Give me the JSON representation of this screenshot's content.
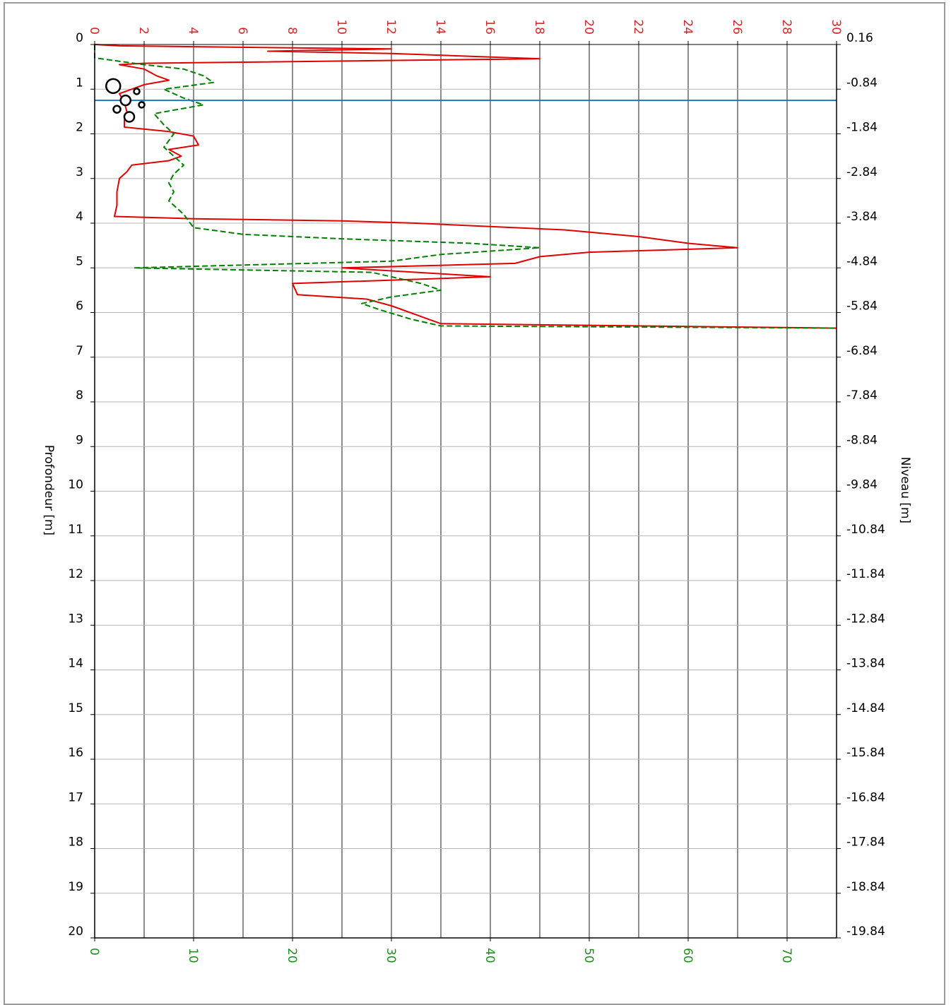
{
  "chart_data": {
    "type": "line",
    "title": "",
    "ylabel_left": "Profondeur [m]",
    "ylabel_right": "Niveau [m]",
    "depth_range": [
      0,
      20
    ],
    "depth_ticks": [
      0,
      1,
      2,
      3,
      4,
      5,
      6,
      7,
      8,
      9,
      10,
      11,
      12,
      13,
      14,
      15,
      16,
      17,
      18,
      19,
      20
    ],
    "level_ticks": [
      "0.16",
      "-0.84",
      "-1.84",
      "-2.84",
      "-3.84",
      "-4.84",
      "-5.84",
      "-6.84",
      "-7.84",
      "-8.84",
      "-9.84",
      "-10.84",
      "-11.84",
      "-12.84",
      "-13.84",
      "-14.84",
      "-15.84",
      "-16.84",
      "-17.84",
      "-18.84",
      "-19.84"
    ],
    "top_axis": {
      "range": [
        0,
        30
      ],
      "ticks": [
        0,
        2,
        4,
        6,
        8,
        10,
        12,
        14,
        16,
        18,
        20,
        22,
        24,
        26,
        28,
        30
      ],
      "color": "#d62728"
    },
    "bottom_axis": {
      "range": [
        0,
        75
      ],
      "ticks": [
        0,
        10,
        20,
        30,
        40,
        50,
        60,
        70
      ],
      "color": "#1f8f1f"
    },
    "grid": true,
    "water_level_depth": 1.25,
    "water_level_color": "#1f77b4",
    "series": [
      {
        "axis": "top",
        "color": "#e00000",
        "style": "solid",
        "points": [
          [
            0,
            0
          ],
          [
            1,
            0.03
          ],
          [
            12,
            0.1
          ],
          [
            7,
            0.15
          ],
          [
            12,
            0.2
          ],
          [
            16,
            0.28
          ],
          [
            18,
            0.32
          ],
          [
            2,
            0.42
          ],
          [
            1,
            0.45
          ],
          [
            2,
            0.55
          ],
          [
            2.5,
            0.7
          ],
          [
            3,
            0.8
          ],
          [
            2,
            0.9
          ],
          [
            1,
            1.1
          ],
          [
            1.2,
            1.3
          ],
          [
            1.3,
            1.5
          ],
          [
            1.2,
            1.7
          ],
          [
            1.2,
            1.85
          ],
          [
            3,
            1.95
          ],
          [
            4,
            2.05
          ],
          [
            4.2,
            2.25
          ],
          [
            3,
            2.35
          ],
          [
            3.5,
            2.5
          ],
          [
            3,
            2.6
          ],
          [
            1.5,
            2.7
          ],
          [
            1.3,
            2.85
          ],
          [
            1,
            3.0
          ],
          [
            0.9,
            3.3
          ],
          [
            0.9,
            3.6
          ],
          [
            0.8,
            3.85
          ],
          [
            4,
            3.9
          ],
          [
            10,
            3.95
          ],
          [
            13,
            4.0
          ],
          [
            19,
            4.15
          ],
          [
            22,
            4.3
          ],
          [
            24,
            4.45
          ],
          [
            26,
            4.55
          ],
          [
            20,
            4.65
          ],
          [
            18,
            4.75
          ],
          [
            17,
            4.9
          ],
          [
            10,
            5.0
          ],
          [
            16,
            5.2
          ],
          [
            8,
            5.35
          ],
          [
            8.2,
            5.6
          ],
          [
            11,
            5.7
          ],
          [
            12,
            5.85
          ],
          [
            13,
            6.05
          ],
          [
            14,
            6.25
          ],
          [
            30,
            6.35
          ]
        ]
      },
      {
        "axis": "bottom",
        "color": "#008000",
        "style": "dashed",
        "points": [
          [
            0,
            0
          ],
          [
            0,
            0.3
          ],
          [
            5,
            0.45
          ],
          [
            9,
            0.55
          ],
          [
            11,
            0.7
          ],
          [
            12,
            0.85
          ],
          [
            7,
            1.0
          ],
          [
            9,
            1.2
          ],
          [
            11,
            1.35
          ],
          [
            6,
            1.55
          ],
          [
            7,
            1.8
          ],
          [
            8,
            2.0
          ],
          [
            7,
            2.3
          ],
          [
            8,
            2.5
          ],
          [
            9,
            2.7
          ],
          [
            8,
            2.9
          ],
          [
            7.5,
            3.1
          ],
          [
            8,
            3.3
          ],
          [
            7.5,
            3.5
          ],
          [
            9,
            3.8
          ],
          [
            10,
            4.1
          ],
          [
            15,
            4.25
          ],
          [
            25,
            4.35
          ],
          [
            38,
            4.45
          ],
          [
            45,
            4.55
          ],
          [
            35,
            4.7
          ],
          [
            30,
            4.85
          ],
          [
            4,
            5.0
          ],
          [
            28,
            5.1
          ],
          [
            30,
            5.2
          ],
          [
            33,
            5.35
          ],
          [
            35,
            5.5
          ],
          [
            30,
            5.65
          ],
          [
            27,
            5.8
          ],
          [
            29,
            5.95
          ],
          [
            32,
            6.15
          ],
          [
            35,
            6.3
          ],
          [
            75,
            6.35
          ]
        ]
      }
    ],
    "markers": [
      {
        "x": 0.75,
        "depth": 0.93,
        "r": 10
      },
      {
        "x": 1.25,
        "depth": 1.25,
        "r": 7
      },
      {
        "x": 1.7,
        "depth": 1.05,
        "r": 4
      },
      {
        "x": 1.9,
        "depth": 1.35,
        "r": 4
      },
      {
        "x": 0.9,
        "depth": 1.45,
        "r": 5
      },
      {
        "x": 1.4,
        "depth": 1.62,
        "r": 7
      }
    ]
  }
}
